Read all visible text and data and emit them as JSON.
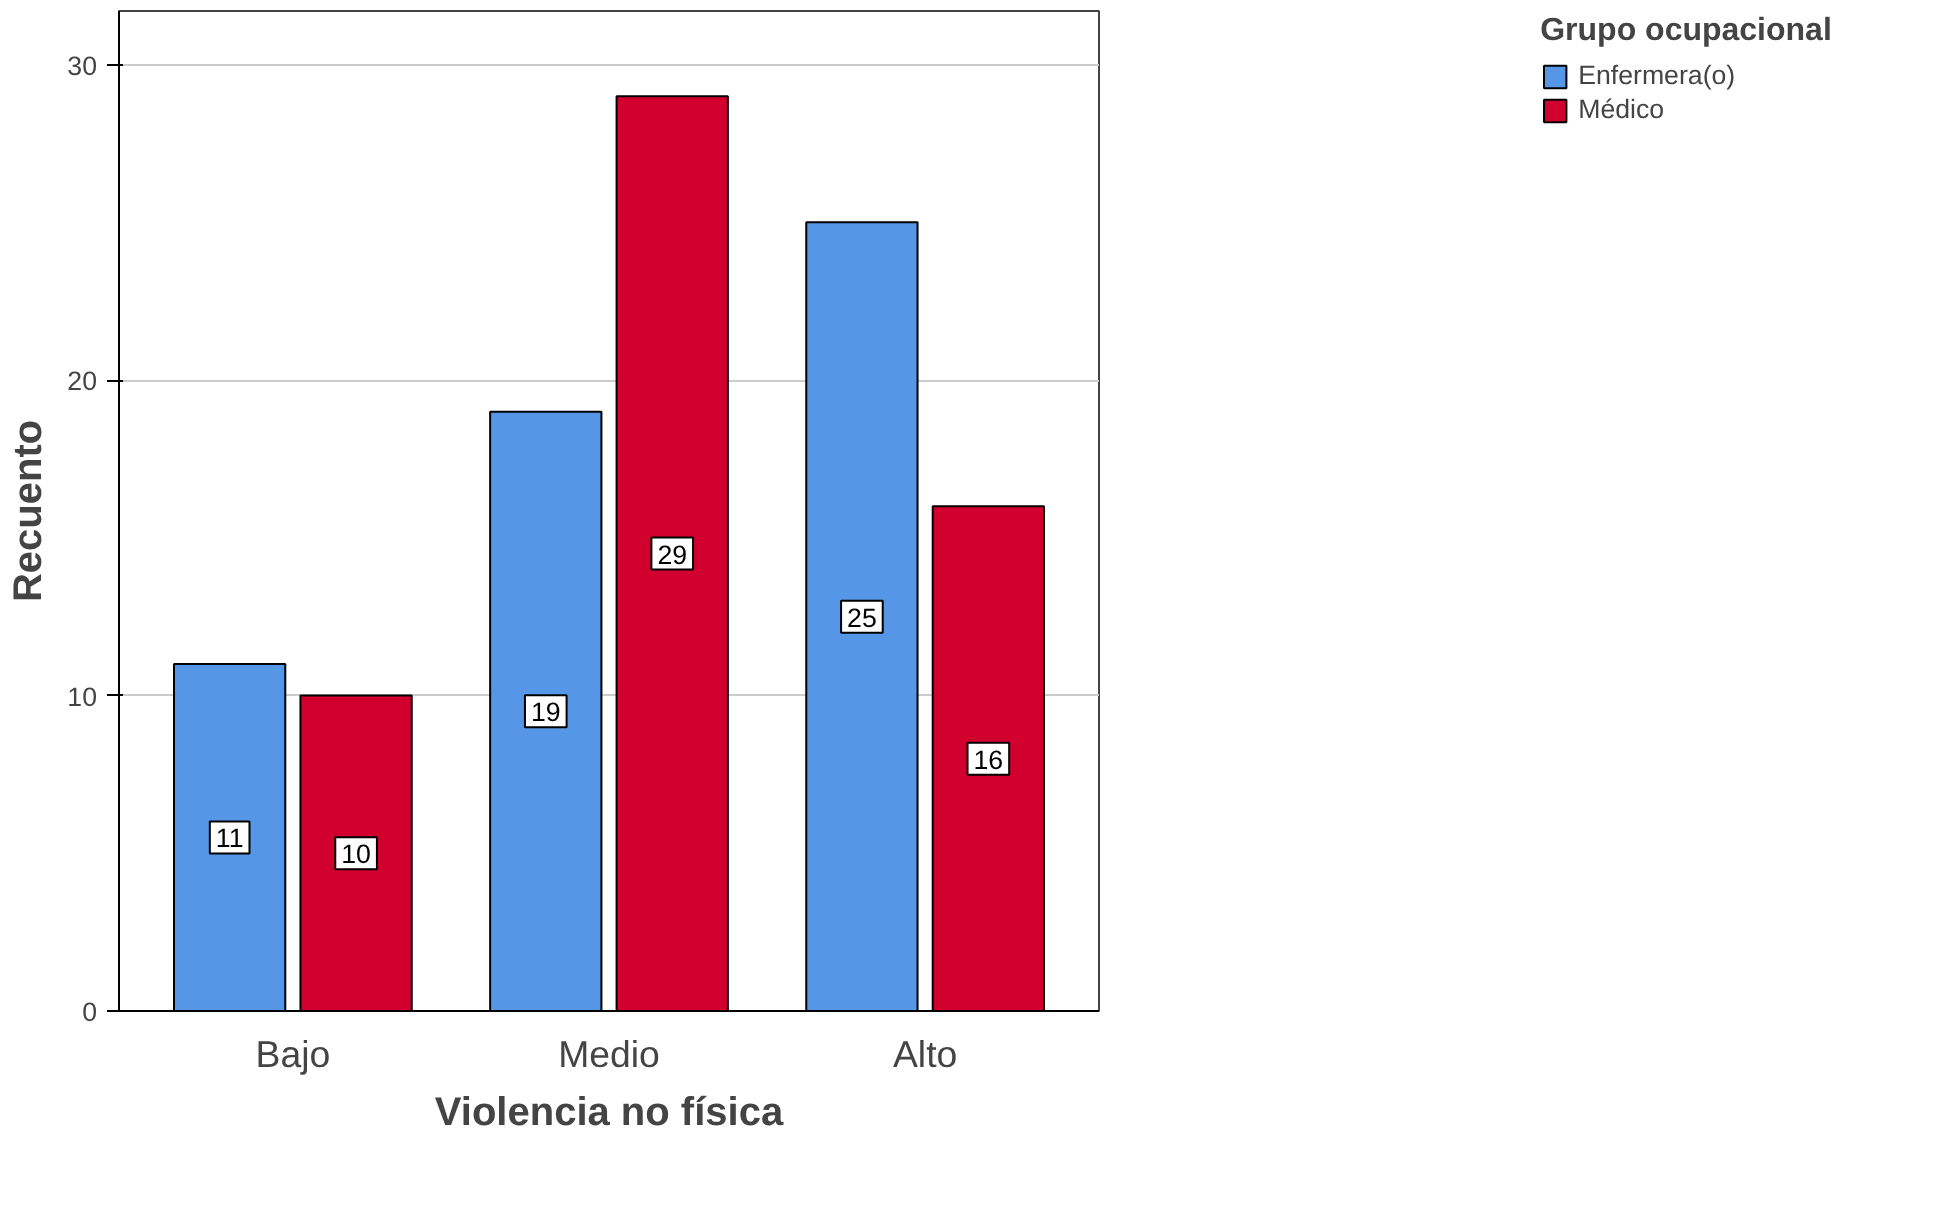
{
  "chart_data": {
    "type": "bar",
    "xlabel": "Violencia no física",
    "ylabel": "Recuento",
    "legend_title": "Grupo ocupacional",
    "categories": [
      "Bajo",
      "Medio",
      "Alto"
    ],
    "series": [
      {
        "name": "Enfermera(o)",
        "color": "#5596e6",
        "values": [
          11,
          19,
          25
        ]
      },
      {
        "name": "Médico",
        "color": "#d2002e",
        "values": [
          10,
          29,
          16
        ]
      }
    ],
    "ylim": [
      0,
      31.7
    ],
    "yticks": [
      0,
      10,
      20,
      30
    ],
    "grid": "y",
    "legend": "top right",
    "data_labels": true
  }
}
